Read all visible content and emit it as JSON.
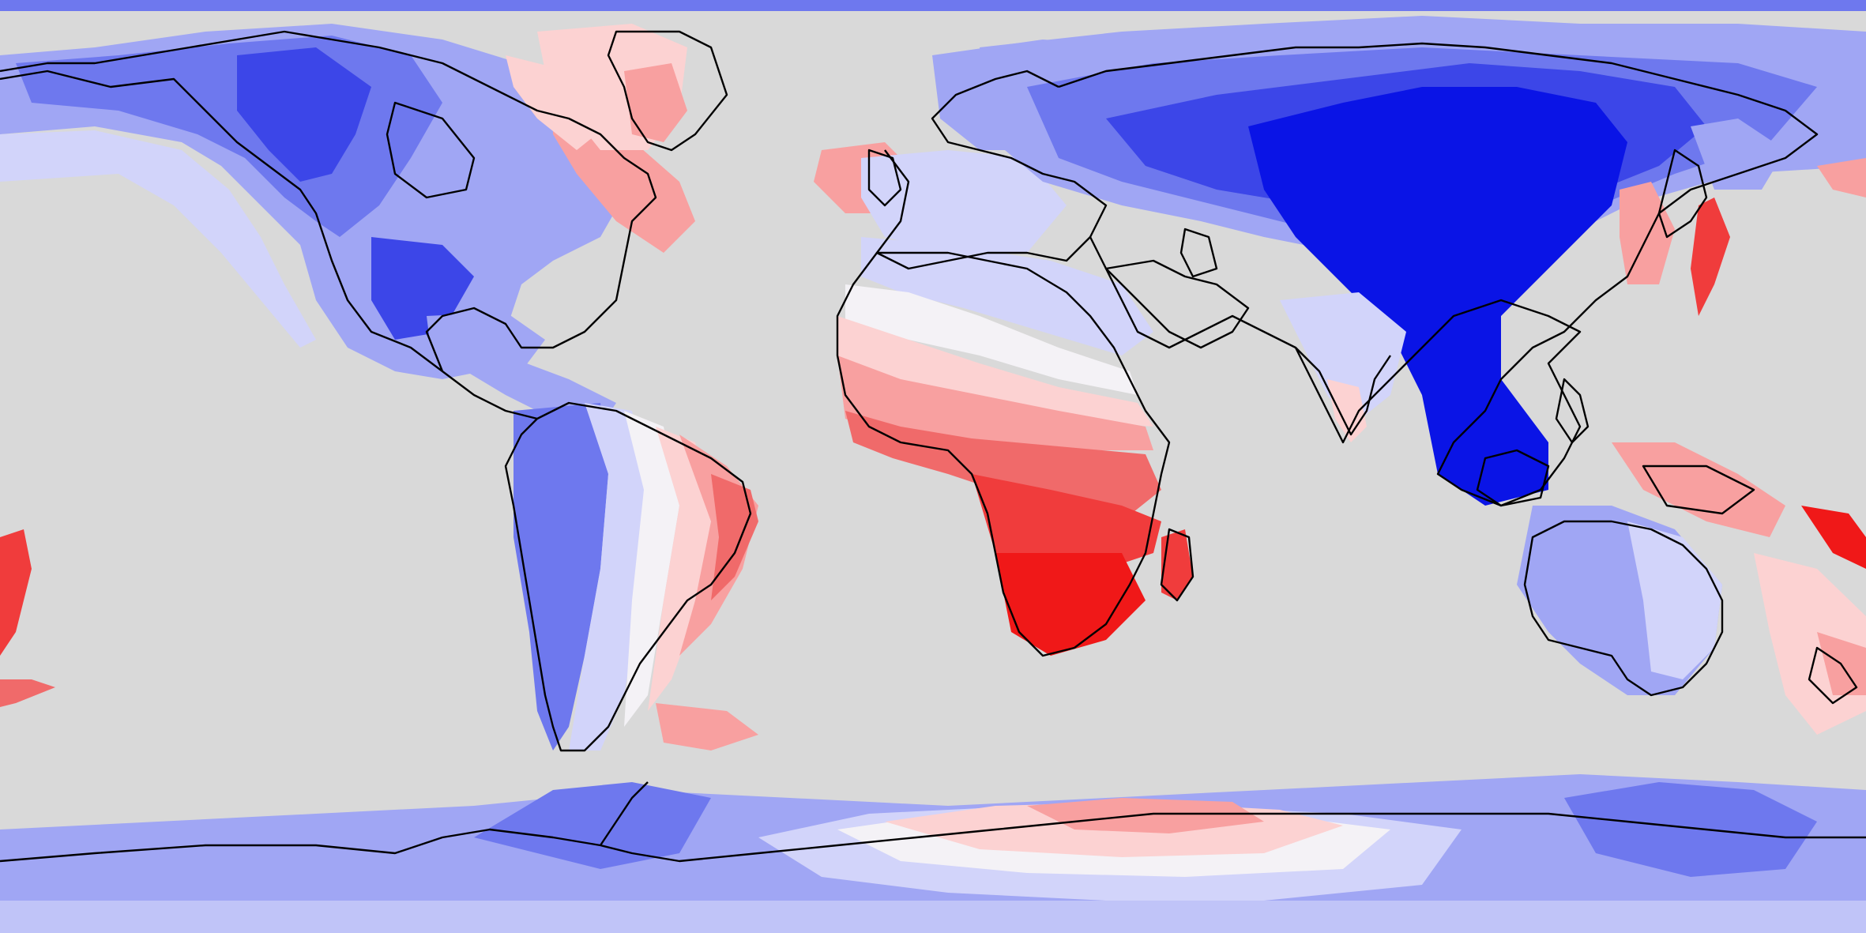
{
  "map": {
    "projection": "equirectangular",
    "colormap": "bwr",
    "background_color": "#d9d9d9",
    "coastline_color": "#000000",
    "palette": {
      "blue_darkest": "#0a14e6",
      "blue_dark": "#3c46e8",
      "blue_mid": "#6e78ee",
      "blue_light": "#a0a6f4",
      "blue_pale": "#d2d4fa",
      "white": "#f4f2f6",
      "red_pale": "#fcd2d2",
      "red_light": "#f8a0a0",
      "red_mid": "#f06a6a",
      "red_dark": "#f03c3c",
      "red_darkest": "#f01818"
    }
  }
}
